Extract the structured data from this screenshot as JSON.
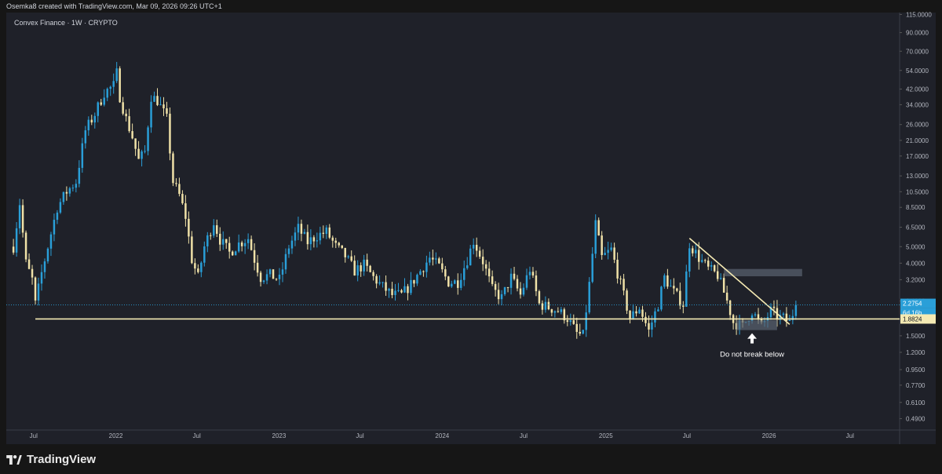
{
  "credit": "Osemka8 created with TradingView.com, Mar 09, 2026 09:26 UTC+1",
  "symbol": "Convex Finance · 1W · CRYPTO",
  "brand": "TradingView",
  "colors": {
    "background": "#1f2129",
    "up": "#2a9fd8",
    "down": "#f0e2a8",
    "trendline": "#f5eab3",
    "grid": "#2a2d38"
  },
  "annotation": {
    "text": "Do not break below",
    "icon": "arrow-up-icon"
  },
  "badges": {
    "price": "2.2754",
    "countdown": "6d 16h",
    "support": "1.8824"
  },
  "chart_data": {
    "type": "candlestick",
    "y_scale": "log",
    "ylim": [
      0.42,
      118
    ],
    "price_ticks": [
      "115.0000",
      "90.0000",
      "70.0000",
      "54.0000",
      "42.0000",
      "34.0000",
      "26.0000",
      "21.0000",
      "17.0000",
      "13.0000",
      "10.5000",
      "8.5000",
      "6.5000",
      "5.0000",
      "4.0000",
      "3.2000",
      "2.4000",
      "1.5000",
      "1.2000",
      "0.9500",
      "0.7700",
      "0.6100",
      "0.4900"
    ],
    "time_ticks": [
      {
        "label": "Jul",
        "date": "2021-07-01"
      },
      {
        "label": "2022",
        "date": "2022-01-01"
      },
      {
        "label": "Jul",
        "date": "2022-07-01"
      },
      {
        "label": "2023",
        "date": "2023-01-01"
      },
      {
        "label": "Jul",
        "date": "2023-07-01"
      },
      {
        "label": "2024",
        "date": "2024-01-01"
      },
      {
        "label": "Jul",
        "date": "2024-07-01"
      },
      {
        "label": "2025",
        "date": "2025-01-01"
      },
      {
        "label": "Jul",
        "date": "2025-07-01"
      },
      {
        "label": "2026",
        "date": "2026-01-01"
      },
      {
        "label": "Jul",
        "date": "2026-07-01"
      }
    ],
    "xlim": [
      "2021-05-01",
      "2026-10-20"
    ],
    "last_price": 2.2754,
    "support_level": 1.8824,
    "trendline": [
      {
        "date": "2025-07-07",
        "price": 5.6
      },
      {
        "date": "2026-02-16",
        "price": 1.75
      }
    ],
    "resistance_zone": {
      "date_start": "2025-09-22",
      "date_end": "2026-03-16",
      "price_low": 3.35,
      "price_high": 3.7
    },
    "support_zone": {
      "date_start": "2025-10-20",
      "date_end": "2026-01-19",
      "price_low": 1.62,
      "price_high": 1.85
    },
    "close_path": [
      [
        "2021-05-17",
        5.0
      ],
      [
        "2021-05-31",
        9.0
      ],
      [
        "2021-06-14",
        4.0
      ],
      [
        "2021-06-28",
        3.2
      ],
      [
        "2021-07-05",
        2.3
      ],
      [
        "2021-07-19",
        3.5
      ],
      [
        "2021-08-02",
        5.0
      ],
      [
        "2021-08-23",
        8.5
      ],
      [
        "2021-09-13",
        10.5
      ],
      [
        "2021-10-04",
        12.0
      ],
      [
        "2021-10-25",
        24.0
      ],
      [
        "2021-11-15",
        30.0
      ],
      [
        "2021-12-06",
        40.0
      ],
      [
        "2021-12-27",
        44.0
      ],
      [
        "2022-01-03",
        52.0
      ],
      [
        "2022-01-10",
        38.0
      ],
      [
        "2022-01-24",
        28.0
      ],
      [
        "2022-02-07",
        22.0
      ],
      [
        "2022-02-21",
        16.0
      ],
      [
        "2022-03-07",
        18.0
      ],
      [
        "2022-03-21",
        38.0
      ],
      [
        "2022-04-04",
        36.0
      ],
      [
        "2022-04-25",
        28.0
      ],
      [
        "2022-05-09",
        12.0
      ],
      [
        "2022-05-23",
        10.0
      ],
      [
        "2022-06-06",
        7.5
      ],
      [
        "2022-06-20",
        4.2
      ],
      [
        "2022-07-04",
        3.3
      ],
      [
        "2022-07-18",
        5.0
      ],
      [
        "2022-08-08",
        7.0
      ],
      [
        "2022-08-22",
        5.5
      ],
      [
        "2022-09-12",
        4.6
      ],
      [
        "2022-10-03",
        5.2
      ],
      [
        "2022-10-24",
        5.6
      ],
      [
        "2022-11-07",
        4.2
      ],
      [
        "2022-11-21",
        3.3
      ],
      [
        "2022-12-12",
        3.4
      ],
      [
        "2023-01-02",
        3.2
      ],
      [
        "2023-01-23",
        5.0
      ],
      [
        "2023-02-13",
        6.4
      ],
      [
        "2023-03-06",
        5.3
      ],
      [
        "2023-03-27",
        5.8
      ],
      [
        "2023-04-17",
        6.1
      ],
      [
        "2023-05-08",
        5.0
      ],
      [
        "2023-05-29",
        4.4
      ],
      [
        "2023-06-19",
        3.6
      ],
      [
        "2023-07-10",
        3.9
      ],
      [
        "2023-07-31",
        3.3
      ],
      [
        "2023-08-21",
        2.9
      ],
      [
        "2023-09-11",
        2.6
      ],
      [
        "2023-10-02",
        2.6
      ],
      [
        "2023-10-23",
        3.0
      ],
      [
        "2023-11-13",
        3.6
      ],
      [
        "2023-12-04",
        4.3
      ],
      [
        "2023-12-25",
        3.8
      ],
      [
        "2024-01-15",
        3.1
      ],
      [
        "2024-02-05",
        3.1
      ],
      [
        "2024-02-26",
        4.2
      ],
      [
        "2024-03-11",
        5.4
      ],
      [
        "2024-04-01",
        4.1
      ],
      [
        "2024-04-22",
        2.8
      ],
      [
        "2024-05-13",
        2.5
      ],
      [
        "2024-06-03",
        3.3
      ],
      [
        "2024-06-24",
        2.6
      ],
      [
        "2024-07-15",
        3.7
      ],
      [
        "2024-08-05",
        2.3
      ],
      [
        "2024-08-26",
        2.2
      ],
      [
        "2024-09-16",
        2.1
      ],
      [
        "2024-10-07",
        1.9
      ],
      [
        "2024-10-28",
        1.55
      ],
      [
        "2024-11-11",
        1.5
      ],
      [
        "2024-11-25",
        3.0
      ],
      [
        "2024-12-09",
        6.8
      ],
      [
        "2024-12-23",
        4.3
      ],
      [
        "2025-01-13",
        4.8
      ],
      [
        "2025-02-03",
        3.0
      ],
      [
        "2025-02-24",
        1.9
      ],
      [
        "2025-03-17",
        2.2
      ],
      [
        "2025-04-07",
        1.6
      ],
      [
        "2025-04-28",
        2.3
      ],
      [
        "2025-05-12",
        3.3
      ],
      [
        "2025-06-02",
        2.7
      ],
      [
        "2025-06-23",
        2.3
      ],
      [
        "2025-07-07",
        5.2
      ],
      [
        "2025-07-28",
        4.3
      ],
      [
        "2025-08-18",
        3.7
      ],
      [
        "2025-09-08",
        3.4
      ],
      [
        "2025-09-29",
        2.4
      ],
      [
        "2025-10-13",
        1.8
      ],
      [
        "2025-11-03",
        1.7
      ],
      [
        "2025-11-24",
        2.1
      ],
      [
        "2025-12-15",
        1.7
      ],
      [
        "2026-01-05",
        2.1
      ],
      [
        "2026-01-19",
        1.95
      ],
      [
        "2026-02-02",
        1.9
      ],
      [
        "2026-02-16",
        1.8
      ],
      [
        "2026-03-02",
        2.2754
      ]
    ]
  }
}
